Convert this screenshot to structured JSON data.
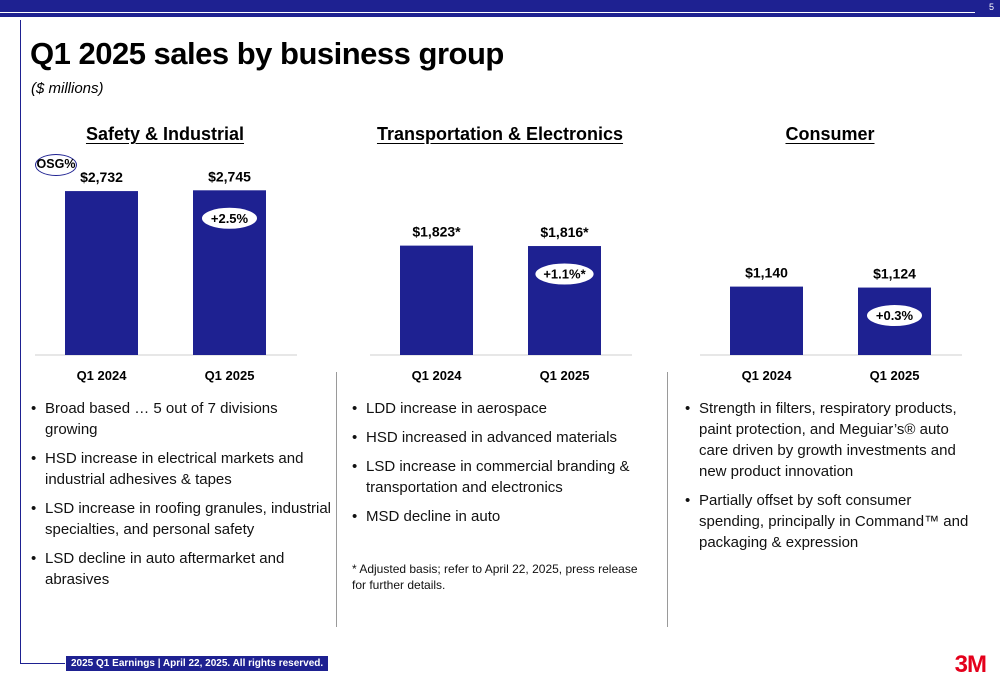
{
  "page_number": "5",
  "title": "Q1 2025 sales by business group",
  "subtitle": "($ millions)",
  "osg_label": "OSG%",
  "groups": [
    {
      "title": "Safety & Industrial",
      "bullets": [
        "Broad based … 5 out of 7 divisions growing",
        "HSD increase in electrical markets and industrial adhesives & tapes",
        "LSD increase in roofing granules, industrial specialties, and personal safety",
        "LSD decline in auto aftermarket and abrasives"
      ]
    },
    {
      "title": "Transportation & Electronics",
      "bullets": [
        "LDD increase in aerospace",
        "HSD increased in advanced materials",
        "LSD increase in commercial branding & transportation and electronics",
        "MSD decline in auto"
      ],
      "footnote": "* Adjusted basis; refer to April 22, 2025, press release for further details."
    },
    {
      "title": "Consumer",
      "bullets": [
        "Strength in filters, respiratory products, paint protection, and Meguiar’s® auto care driven by growth investments and new product innovation",
        "Partially offset by soft consumer spending, principally in Command™ and packaging & expression"
      ]
    }
  ],
  "chart_data": [
    {
      "type": "bar",
      "title": "Safety & Industrial",
      "categories": [
        "Q1 2024",
        "Q1 2025"
      ],
      "values": [
        2732,
        2745
      ],
      "value_labels": [
        "$2,732",
        "$2,745"
      ],
      "osg_badge": "+2.5%"
    },
    {
      "type": "bar",
      "title": "Transportation & Electronics",
      "categories": [
        "Q1 2024",
        "Q1 2025"
      ],
      "values": [
        1823,
        1816
      ],
      "value_labels": [
        "$1,823*",
        "$1,816*"
      ],
      "osg_badge": "+1.1%*"
    },
    {
      "type": "bar",
      "title": "Consumer",
      "categories": [
        "Q1 2024",
        "Q1 2025"
      ],
      "values": [
        1140,
        1124
      ],
      "value_labels": [
        "$1,140",
        "$1,124"
      ],
      "osg_badge": "+0.3%"
    }
  ],
  "footer": "2025 Q1 Earnings | April 22, 2025. All rights reserved.",
  "logo_text": "3M",
  "colors": {
    "brand_blue": "#1e2191",
    "logo_red": "#e4001b"
  }
}
